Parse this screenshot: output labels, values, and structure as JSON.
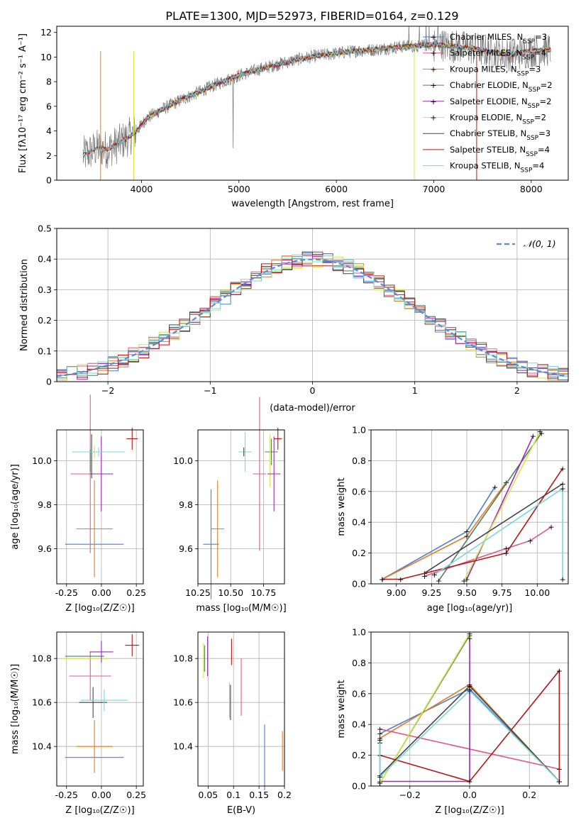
{
  "figure": {
    "title": "PLATE=1300, MJD=52973, FIBERID=0164, z=0.129"
  },
  "colors": {
    "chabrier_miles": "#4a7fd4",
    "salpeter_miles": "#e05a84",
    "kroupa_miles": "#e47d22",
    "chabrier_elodie": "#4f7f62",
    "salpeter_elodie": "#9a29b5",
    "kroupa_elodie": "#d4e645",
    "chabrier_stelib": "#444444",
    "salpeter_stelib": "#b51616",
    "kroupa_stelib": "#76d8d8",
    "normal": "#5a8ad8",
    "data_grey": "#7a7a7a"
  },
  "legend_models": [
    {
      "key": "chabrier_miles",
      "label": "Chabrier MILES, N",
      "sub": "SSP",
      "suffix": "=3"
    },
    {
      "key": "salpeter_miles",
      "label": "Salpeter MILES, N",
      "sub": "SSP",
      "suffix": "=4"
    },
    {
      "key": "kroupa_miles",
      "label": "Kroupa MILES, N",
      "sub": "SSP",
      "suffix": "=3"
    },
    {
      "key": "chabrier_elodie",
      "label": "Chabrier ELODIE, N",
      "sub": "SSP",
      "suffix": "=2"
    },
    {
      "key": "salpeter_elodie",
      "label": "Salpeter ELODIE, N",
      "sub": "SSP",
      "suffix": "=2"
    },
    {
      "key": "kroupa_elodie",
      "label": "Kroupa ELODIE, N",
      "sub": "SSP",
      "suffix": "=2"
    },
    {
      "key": "chabrier_stelib",
      "label": "Chabrier STELIB, N",
      "sub": "SSP",
      "suffix": "=3"
    },
    {
      "key": "salpeter_stelib",
      "label": "Salpeter STELIB, N",
      "sub": "SSP",
      "suffix": "=4"
    },
    {
      "key": "kroupa_stelib",
      "label": "Kroupa STELIB, N",
      "sub": "SSP",
      "suffix": "=4"
    }
  ],
  "chart_data": [
    {
      "id": "spectrum",
      "type": "line",
      "xlabel": "wavelength [Angstrom, rest frame]",
      "ylabel": "Flux [fλ10⁻¹⁷ erg cm⁻² s⁻¹ A⁻¹]",
      "xlim": [
        3130,
        8380
      ],
      "ylim": [
        0,
        12.5
      ],
      "xticks": [
        4000,
        5000,
        6000,
        7000,
        8000
      ],
      "yticks": [
        0,
        2,
        4,
        6,
        8,
        10,
        12
      ],
      "grid": false,
      "legend": "top-right",
      "continuum": {
        "x": [
          3400,
          3550,
          3650,
          3750,
          3850,
          3950,
          4050,
          4200,
          4400,
          4600,
          4800,
          5000,
          5200,
          5400,
          5600,
          5800,
          6000,
          6200,
          6400,
          6600,
          6800,
          7000,
          7200,
          7400,
          7600,
          7800,
          8000,
          8200
        ],
        "y": [
          2.0,
          2.6,
          2.5,
          2.9,
          3.4,
          4.0,
          5.0,
          5.7,
          6.5,
          7.2,
          7.9,
          8.5,
          9.0,
          9.4,
          9.8,
          10.1,
          10.3,
          10.5,
          10.6,
          10.8,
          10.9,
          11.0,
          10.9,
          10.7,
          10.4,
          10.2,
          10.5,
          10.6
        ]
      }
    },
    {
      "id": "residuals",
      "type": "histogram",
      "xlabel": "(data-model)/error",
      "ylabel": "Normed distribution",
      "xlim": [
        -2.5,
        2.5
      ],
      "ylim": [
        0,
        0.5
      ],
      "xticks": [
        -2,
        -1,
        0,
        1,
        2
      ],
      "yticks": [
        0.0,
        0.1,
        0.2,
        0.3,
        0.4,
        0.5
      ],
      "grid": true,
      "legend": "top-right",
      "normal_label": "𝒩(0, 1)"
    },
    {
      "id": "age_vs_Z",
      "type": "scatter",
      "xlabel": "Z [log₁₀(Z/Z☉)]",
      "ylabel": "age  [log₁₀(age/yr)]",
      "xlim": [
        -0.32,
        0.3
      ],
      "ylim": [
        9.44,
        10.14
      ],
      "xticks": [
        -0.25,
        0.0,
        0.25
      ],
      "yticks": [
        9.6,
        9.8,
        10.0
      ],
      "grid": true,
      "points": [
        {
          "model": "chabrier_miles",
          "x": -0.05,
          "xerr": 0.21,
          "y": 9.62,
          "yerr": 0.0
        },
        {
          "model": "kroupa_miles",
          "x": -0.05,
          "xerr": 0.13,
          "y": 9.69,
          "yerr": 0.22
        },
        {
          "model": "salpeter_miles",
          "x": -0.08,
          "xerr": 0.14,
          "y": 9.94,
          "yerr": 0.36
        },
        {
          "model": "salpeter_elodie",
          "x": -0.001,
          "xerr": 0.085,
          "y": 9.94,
          "yerr": 0.17
        },
        {
          "model": "chabrier_stelib",
          "x": -0.07,
          "xerr": 0.0,
          "y": 10.02,
          "yerr": 0.1
        },
        {
          "model": "chabrier_elodie",
          "x": -0.08,
          "xerr": 0.0,
          "y": 10.0,
          "yerr": 0.05
        },
        {
          "model": "kroupa_elodie",
          "x": -0.05,
          "xerr": 0.13,
          "y": 10.04,
          "yerr": 0.03
        },
        {
          "model": "kroupa_stelib",
          "x": -0.02,
          "xerr": 0.19,
          "y": 10.04,
          "yerr": 0.02
        },
        {
          "model": "salpeter_stelib",
          "x": 0.22,
          "xerr": 0.04,
          "y": 10.1,
          "yerr": 0.05
        }
      ]
    },
    {
      "id": "age_vs_mass",
      "type": "scatter",
      "xlabel": "mass [log₁₀(M/M☉)]",
      "xlim": [
        10.25,
        10.91
      ],
      "ylim": [
        9.44,
        10.14
      ],
      "xticks": [
        10.25,
        10.5,
        10.75
      ],
      "yticks": [
        9.6,
        9.8,
        10.0
      ],
      "grid": true,
      "points": [
        {
          "model": "chabrier_miles",
          "x": 10.35,
          "xerr": 0.06,
          "y": 9.62,
          "yerr": 0.25
        },
        {
          "model": "kroupa_miles",
          "x": 10.4,
          "xerr": 0.05,
          "y": 9.69,
          "yerr": 0.22
        },
        {
          "model": "kroupa_stelib",
          "x": 10.61,
          "xerr": 0.05,
          "y": 10.04,
          "yerr": 0.09
        },
        {
          "model": "chabrier_stelib",
          "x": 10.6,
          "xerr": 0.0,
          "y": 10.04,
          "yerr": 0.02
        },
        {
          "model": "salpeter_miles",
          "x": 10.72,
          "xerr": 0.05,
          "y": 9.94,
          "yerr": 0.35
        },
        {
          "model": "chabrier_elodie",
          "x": 10.81,
          "xerr": 0.05,
          "y": 10.04,
          "yerr": 0.06
        },
        {
          "model": "kroupa_elodie",
          "x": 10.8,
          "xerr": 0.05,
          "y": 10.0,
          "yerr": 0.12
        },
        {
          "model": "salpeter_elodie",
          "x": 10.83,
          "xerr": 0.05,
          "y": 9.94,
          "yerr": 0.17
        },
        {
          "model": "salpeter_stelib",
          "x": 10.86,
          "xerr": 0.03,
          "y": 10.1,
          "yerr": 0.05
        }
      ]
    },
    {
      "id": "mass_weight_vs_age",
      "type": "line",
      "xlabel": "age  [log₁₀(age/yr)]",
      "ylabel": "mass weight",
      "xlim": [
        8.82,
        10.22
      ],
      "ylim": [
        0.0,
        1.0
      ],
      "xticks": [
        9.0,
        9.25,
        9.5,
        9.75,
        10.0
      ],
      "yticks": [
        0.0,
        0.2,
        0.4,
        0.6,
        0.8,
        1.0
      ],
      "grid": true,
      "series": [
        {
          "model": "chabrier_miles",
          "x": [
            8.9,
            9.5,
            9.7
          ],
          "y": [
            0.03,
            0.34,
            0.63
          ]
        },
        {
          "model": "kroupa_miles",
          "x": [
            8.9,
            9.5,
            9.78
          ],
          "y": [
            0.03,
            0.31,
            0.66
          ]
        },
        {
          "model": "salpeter_miles",
          "x": [
            9.2,
            9.78,
            9.95,
            10.1
          ],
          "y": [
            0.05,
            0.23,
            0.28,
            0.37
          ]
        },
        {
          "model": "chabrier_elodie",
          "x": [
            9.3,
            10.03
          ],
          "y": [
            0.02,
            0.98
          ]
        },
        {
          "model": "salpeter_elodie",
          "x": [
            9.5,
            9.97
          ],
          "y": [
            0.03,
            0.96
          ]
        },
        {
          "model": "kroupa_elodie",
          "x": [
            9.48,
            10.02
          ],
          "y": [
            0.02,
            0.99
          ]
        },
        {
          "model": "chabrier_stelib",
          "x": [
            9.2,
            10.18
          ],
          "y": [
            0.07,
            0.65
          ]
        },
        {
          "model": "salpeter_stelib",
          "x": [
            8.9,
            9.03,
            9.78,
            10.18
          ],
          "y": [
            0.03,
            0.03,
            0.2,
            0.75
          ]
        },
        {
          "model": "kroupa_stelib",
          "x": [
            9.27,
            10.18,
            10.18
          ],
          "y": [
            0.06,
            0.62,
            0.03
          ]
        }
      ]
    },
    {
      "id": "mass_vs_Z",
      "type": "scatter",
      "xlabel": "Z [log₁₀(Z/Z☉)]",
      "ylabel": "mass [log₁₀(M/M☉)]",
      "xlim": [
        -0.32,
        0.3
      ],
      "ylim": [
        10.22,
        10.92
      ],
      "xticks": [
        -0.25,
        0.0,
        0.25
      ],
      "yticks": [
        10.4,
        10.6,
        10.8
      ],
      "grid": true,
      "points": [
        {
          "model": "chabrier_miles",
          "x": -0.05,
          "xerr": 0.21,
          "y": 10.35,
          "yerr": 0.0
        },
        {
          "model": "kroupa_miles",
          "x": -0.05,
          "xerr": 0.13,
          "y": 10.4,
          "yerr": 0.12
        },
        {
          "model": "chabrier_stelib",
          "x": -0.06,
          "xerr": 0.1,
          "y": 10.6,
          "yerr": 0.07
        },
        {
          "model": "kroupa_stelib",
          "x": 0.02,
          "xerr": 0.17,
          "y": 10.61,
          "yerr": 0.05
        },
        {
          "model": "salpeter_miles",
          "x": -0.08,
          "xerr": 0.15,
          "y": 10.72,
          "yerr": 0.11
        },
        {
          "model": "chabrier_elodie",
          "x": -0.12,
          "xerr": 0.14,
          "y": 10.81,
          "yerr": 0.0
        },
        {
          "model": "kroupa_elodie",
          "x": -0.12,
          "xerr": 0.16,
          "y": 10.8,
          "yerr": 0.0
        },
        {
          "model": "salpeter_elodie",
          "x": 0.0,
          "xerr": 0.085,
          "y": 10.83,
          "yerr": 0.05
        },
        {
          "model": "salpeter_stelib",
          "x": 0.22,
          "xerr": 0.05,
          "y": 10.86,
          "yerr": 0.05
        }
      ]
    },
    {
      "id": "mass_vs_ebv",
      "type": "scatter",
      "xlabel": "E(B-V)",
      "xlim": [
        0.03,
        0.2
      ],
      "ylim": [
        10.22,
        10.92
      ],
      "xticks": [
        0.05,
        0.1,
        0.15,
        0.2
      ],
      "xticklabels": [
        "0.05",
        "0.1",
        "0.15",
        "0.2"
      ],
      "yticks": [
        10.4,
        10.6,
        10.8
      ],
      "grid": true,
      "points": [
        {
          "model": "chabrier_miles",
          "x": 0.161,
          "y": 10.35,
          "yerr": 0.15
        },
        {
          "model": "kroupa_miles",
          "x": 0.196,
          "y": 10.38,
          "yerr": 0.09
        },
        {
          "model": "chabrier_stelib",
          "x": 0.094,
          "y": 10.6,
          "yerr": 0.08
        },
        {
          "model": "kroupa_stelib",
          "x": 0.092,
          "y": 10.61,
          "yerr": 0.08
        },
        {
          "model": "salpeter_miles",
          "x": 0.115,
          "y": 10.67,
          "yerr": 0.13
        },
        {
          "model": "kroupa_elodie",
          "x": 0.041,
          "y": 10.79,
          "yerr": 0.08
        },
        {
          "model": "chabrier_elodie",
          "x": 0.043,
          "y": 10.8,
          "yerr": 0.06
        },
        {
          "model": "salpeter_elodie",
          "x": 0.049,
          "y": 10.81,
          "yerr": 0.09
        },
        {
          "model": "salpeter_stelib",
          "x": 0.096,
          "y": 10.83,
          "yerr": 0.06
        }
      ]
    },
    {
      "id": "mass_weight_vs_Z",
      "type": "line",
      "xlabel": "Z [log₁₀(Z/Z☉)]",
      "ylabel": "mass weight",
      "xlim": [
        -0.33,
        0.33
      ],
      "ylim": [
        0.0,
        1.0
      ],
      "xticks": [
        -0.2,
        0.0,
        0.2
      ],
      "yticks": [
        0.0,
        0.2,
        0.4,
        0.6,
        0.8,
        1.0
      ],
      "grid": true,
      "series": [
        {
          "model": "chabrier_miles",
          "x": [
            -0.3,
            0.0,
            0.3
          ],
          "y": [
            0.34,
            0.63,
            0.03
          ]
        },
        {
          "model": "kroupa_miles",
          "x": [
            -0.3,
            0.0,
            0.3
          ],
          "y": [
            0.31,
            0.66,
            0.03
          ]
        },
        {
          "model": "salpeter_miles",
          "x": [
            -0.3,
            0.3
          ],
          "y": [
            0.37,
            0.11
          ]
        },
        {
          "model": "chabrier_elodie",
          "x": [
            -0.3,
            0.0
          ],
          "y": [
            0.02,
            0.98
          ]
        },
        {
          "model": "salpeter_elodie",
          "x": [
            -0.3,
            0.0,
            0.0
          ],
          "y": [
            0.03,
            0.03,
            0.96
          ]
        },
        {
          "model": "kroupa_elodie",
          "x": [
            -0.3,
            0.0
          ],
          "y": [
            0.02,
            0.99
          ]
        },
        {
          "model": "chabrier_stelib",
          "x": [
            -0.3,
            -0.3,
            0.0,
            0.3
          ],
          "y": [
            0.28,
            0.07,
            0.65,
            0.03
          ]
        },
        {
          "model": "salpeter_stelib",
          "x": [
            -0.3,
            0.0,
            0.3,
            0.3
          ],
          "y": [
            0.2,
            0.03,
            0.75,
            0.03
          ]
        },
        {
          "model": "kroupa_stelib",
          "x": [
            -0.3,
            -0.3,
            0.0,
            0.3
          ],
          "y": [
            0.3,
            0.06,
            0.62,
            0.03
          ]
        }
      ]
    }
  ]
}
